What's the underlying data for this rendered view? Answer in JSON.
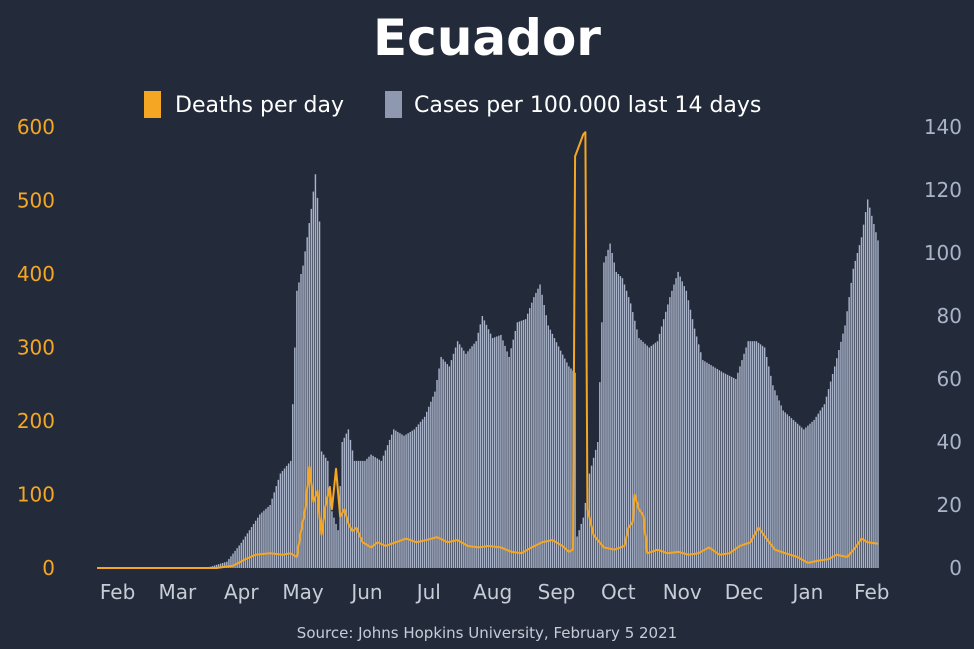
{
  "chart_data": {
    "type": "bar+line",
    "title": "Ecuador",
    "source": "Source: Johns Hopkins University, February 5 2021",
    "colors": {
      "background": "#232b3b",
      "deaths": "#f5a623",
      "cases": "#a8b2c8",
      "title": "#ffffff"
    },
    "legend": [
      {
        "label": "Deaths per day",
        "color": "#f5a623"
      },
      {
        "label": "Cases per 100.000 last 14 days",
        "color": "#8e98b0"
      }
    ],
    "legend_position": "top-center",
    "x_axis": {
      "start_date": "2020-01-22",
      "end_date": "2021-02-04",
      "ticks": [
        {
          "date": "2020-02-01",
          "label": "Feb"
        },
        {
          "date": "2020-03-01",
          "label": "Mar"
        },
        {
          "date": "2020-04-01",
          "label": "Apr"
        },
        {
          "date": "2020-05-01",
          "label": "May"
        },
        {
          "date": "2020-06-01",
          "label": "Jun"
        },
        {
          "date": "2020-07-01",
          "label": "Jul"
        },
        {
          "date": "2020-08-01",
          "label": "Aug"
        },
        {
          "date": "2020-09-01",
          "label": "Sep"
        },
        {
          "date": "2020-10-01",
          "label": "Oct"
        },
        {
          "date": "2020-11-01",
          "label": "Nov"
        },
        {
          "date": "2020-12-01",
          "label": "Dec"
        },
        {
          "date": "2021-01-01",
          "label": "Jan"
        },
        {
          "date": "2021-02-01",
          "label": "Feb"
        }
      ]
    },
    "y_left": {
      "label": "Deaths per day",
      "ylim": [
        0,
        600
      ],
      "ticks": [
        0,
        100,
        200,
        300,
        400,
        500,
        600
      ]
    },
    "y_right": {
      "label": "Cases per 100.000 last 14 days",
      "ylim": [
        0,
        140
      ],
      "ticks": [
        0,
        20,
        40,
        60,
        80,
        100,
        120,
        140
      ]
    },
    "grid": false,
    "series": [
      {
        "name": "Cases per 100.000 last 14 days",
        "type": "bar",
        "axis": "right",
        "points": [
          [
            "2020-01-22",
            0
          ],
          [
            "2020-03-15",
            0
          ],
          [
            "2020-03-25",
            2
          ],
          [
            "2020-04-01",
            8
          ],
          [
            "2020-04-05",
            12
          ],
          [
            "2020-04-10",
            17
          ],
          [
            "2020-04-15",
            20
          ],
          [
            "2020-04-20",
            30
          ],
          [
            "2020-04-25",
            34
          ],
          [
            "2020-04-28",
            88
          ],
          [
            "2020-05-01",
            96
          ],
          [
            "2020-05-05",
            114
          ],
          [
            "2020-05-07",
            125
          ],
          [
            "2020-05-09",
            110
          ],
          [
            "2020-05-10",
            37
          ],
          [
            "2020-05-13",
            34
          ],
          [
            "2020-05-15",
            18
          ],
          [
            "2020-05-18",
            12
          ],
          [
            "2020-05-20",
            40
          ],
          [
            "2020-05-23",
            44
          ],
          [
            "2020-05-26",
            34
          ],
          [
            "2020-05-31",
            34
          ],
          [
            "2020-06-03",
            36
          ],
          [
            "2020-06-08",
            34
          ],
          [
            "2020-06-14",
            44
          ],
          [
            "2020-06-19",
            42
          ],
          [
            "2020-06-24",
            44
          ],
          [
            "2020-06-29",
            48
          ],
          [
            "2020-07-04",
            56
          ],
          [
            "2020-07-07",
            67
          ],
          [
            "2020-07-11",
            64
          ],
          [
            "2020-07-15",
            72
          ],
          [
            "2020-07-19",
            68
          ],
          [
            "2020-07-24",
            72
          ],
          [
            "2020-07-27",
            80
          ],
          [
            "2020-08-01",
            73
          ],
          [
            "2020-08-05",
            74
          ],
          [
            "2020-08-09",
            67
          ],
          [
            "2020-08-13",
            78
          ],
          [
            "2020-08-17",
            79
          ],
          [
            "2020-08-21",
            86
          ],
          [
            "2020-08-24",
            90
          ],
          [
            "2020-08-28",
            77
          ],
          [
            "2020-09-03",
            69
          ],
          [
            "2020-09-07",
            64
          ],
          [
            "2020-09-10",
            62
          ],
          [
            "2020-09-11",
            10
          ],
          [
            "2020-09-14",
            16
          ],
          [
            "2020-09-17",
            30
          ],
          [
            "2020-09-21",
            40
          ],
          [
            "2020-09-24",
            97
          ],
          [
            "2020-09-27",
            103
          ],
          [
            "2020-09-30",
            94
          ],
          [
            "2020-10-03",
            92
          ],
          [
            "2020-10-07",
            84
          ],
          [
            "2020-10-11",
            73
          ],
          [
            "2020-10-16",
            70
          ],
          [
            "2020-10-20",
            72
          ],
          [
            "2020-10-26",
            86
          ],
          [
            "2020-10-30",
            94
          ],
          [
            "2020-11-03",
            88
          ],
          [
            "2020-11-07",
            76
          ],
          [
            "2020-11-11",
            66
          ],
          [
            "2020-11-16",
            64
          ],
          [
            "2020-11-21",
            62
          ],
          [
            "2020-11-27",
            60
          ],
          [
            "2020-12-03",
            72
          ],
          [
            "2020-12-07",
            72
          ],
          [
            "2020-12-11",
            70
          ],
          [
            "2020-12-15",
            58
          ],
          [
            "2020-12-20",
            50
          ],
          [
            "2020-12-25",
            47
          ],
          [
            "2020-12-30",
            44
          ],
          [
            "2021-01-04",
            47
          ],
          [
            "2021-01-09",
            52
          ],
          [
            "2021-01-14",
            64
          ],
          [
            "2021-01-19",
            77
          ],
          [
            "2021-01-23",
            95
          ],
          [
            "2021-01-27",
            105
          ],
          [
            "2021-01-30",
            117
          ],
          [
            "2021-02-04",
            104
          ]
        ]
      },
      {
        "name": "Deaths per day",
        "type": "line",
        "axis": "left",
        "points": [
          [
            "2020-01-22",
            0
          ],
          [
            "2020-03-20",
            0
          ],
          [
            "2020-03-28",
            3
          ],
          [
            "2020-04-03",
            12
          ],
          [
            "2020-04-08",
            18
          ],
          [
            "2020-04-15",
            20
          ],
          [
            "2020-04-21",
            18
          ],
          [
            "2020-04-25",
            20
          ],
          [
            "2020-04-28",
            15
          ],
          [
            "2020-04-30",
            50
          ],
          [
            "2020-05-02",
            80
          ],
          [
            "2020-05-04",
            138
          ],
          [
            "2020-05-06",
            90
          ],
          [
            "2020-05-08",
            105
          ],
          [
            "2020-05-09",
            70
          ],
          [
            "2020-05-10",
            45
          ],
          [
            "2020-05-12",
            85
          ],
          [
            "2020-05-14",
            110
          ],
          [
            "2020-05-15",
            80
          ],
          [
            "2020-05-17",
            135
          ],
          [
            "2020-05-19",
            70
          ],
          [
            "2020-05-21",
            80
          ],
          [
            "2020-05-23",
            60
          ],
          [
            "2020-05-25",
            50
          ],
          [
            "2020-05-27",
            55
          ],
          [
            "2020-05-30",
            35
          ],
          [
            "2020-06-03",
            28
          ],
          [
            "2020-06-06",
            35
          ],
          [
            "2020-06-10",
            30
          ],
          [
            "2020-06-15",
            35
          ],
          [
            "2020-06-20",
            40
          ],
          [
            "2020-06-25",
            35
          ],
          [
            "2020-06-30",
            38
          ],
          [
            "2020-07-05",
            42
          ],
          [
            "2020-07-10",
            35
          ],
          [
            "2020-07-15",
            38
          ],
          [
            "2020-07-20",
            30
          ],
          [
            "2020-07-25",
            28
          ],
          [
            "2020-07-30",
            30
          ],
          [
            "2020-08-05",
            28
          ],
          [
            "2020-08-10",
            22
          ],
          [
            "2020-08-15",
            20
          ],
          [
            "2020-08-20",
            28
          ],
          [
            "2020-08-25",
            35
          ],
          [
            "2020-08-30",
            38
          ],
          [
            "2020-09-04",
            30
          ],
          [
            "2020-09-07",
            22
          ],
          [
            "2020-09-09",
            25
          ],
          [
            "2020-09-10",
            560
          ],
          [
            "2020-09-12",
            575
          ],
          [
            "2020-09-14",
            590
          ],
          [
            "2020-09-15",
            593
          ],
          [
            "2020-09-16",
            80
          ],
          [
            "2020-09-19",
            45
          ],
          [
            "2020-09-24",
            28
          ],
          [
            "2020-09-29",
            25
          ],
          [
            "2020-10-04",
            30
          ],
          [
            "2020-10-06",
            55
          ],
          [
            "2020-10-08",
            62
          ],
          [
            "2020-10-09",
            100
          ],
          [
            "2020-10-11",
            80
          ],
          [
            "2020-10-13",
            72
          ],
          [
            "2020-10-15",
            20
          ],
          [
            "2020-10-20",
            25
          ],
          [
            "2020-10-25",
            20
          ],
          [
            "2020-10-30",
            22
          ],
          [
            "2020-11-04",
            18
          ],
          [
            "2020-11-09",
            20
          ],
          [
            "2020-11-14",
            28
          ],
          [
            "2020-11-19",
            18
          ],
          [
            "2020-11-24",
            20
          ],
          [
            "2020-11-29",
            30
          ],
          [
            "2020-12-04",
            35
          ],
          [
            "2020-12-08",
            55
          ],
          [
            "2020-12-12",
            40
          ],
          [
            "2020-12-16",
            25
          ],
          [
            "2020-12-21",
            20
          ],
          [
            "2020-12-27",
            15
          ],
          [
            "2021-01-01",
            7
          ],
          [
            "2021-01-06",
            10
          ],
          [
            "2021-01-11",
            12
          ],
          [
            "2021-01-15",
            18
          ],
          [
            "2021-01-20",
            15
          ],
          [
            "2021-01-24",
            28
          ],
          [
            "2021-01-27",
            40
          ],
          [
            "2021-01-30",
            35
          ],
          [
            "2021-02-04",
            33
          ]
        ]
      }
    ]
  }
}
